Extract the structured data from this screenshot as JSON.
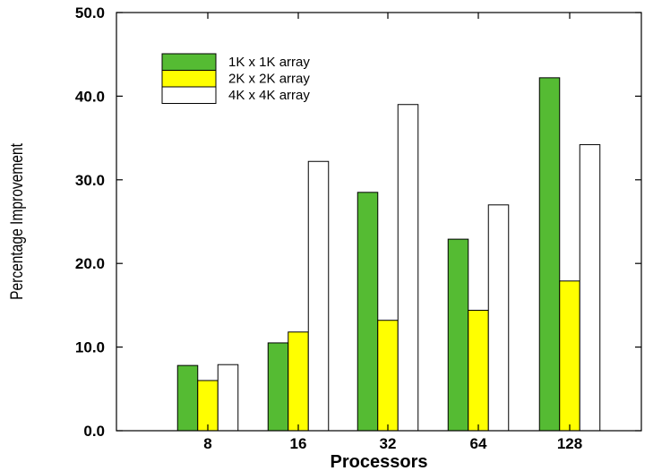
{
  "chart_data": {
    "type": "bar",
    "xlabel": "Processors",
    "ylabel": "Percentage Improvement",
    "ylim": [
      0,
      50
    ],
    "y_ticks": [
      "0.0",
      "10.0",
      "20.0",
      "30.0",
      "40.0",
      "50.0"
    ],
    "categories": [
      "8",
      "16",
      "32",
      "64",
      "128"
    ],
    "series": [
      {
        "name": "1K x 1K array",
        "color": "#55bb33",
        "values": [
          7.8,
          10.5,
          28.5,
          22.9,
          42.2
        ]
      },
      {
        "name": "2K x 2K array",
        "color": "#ffff00",
        "values": [
          6.0,
          11.8,
          13.2,
          14.4,
          17.9
        ]
      },
      {
        "name": "4K x 4K array",
        "color": "#ffffff",
        "values": [
          7.9,
          32.2,
          39.0,
          27.0,
          34.2
        ]
      }
    ],
    "legend_position": "top-left",
    "grid": false
  }
}
